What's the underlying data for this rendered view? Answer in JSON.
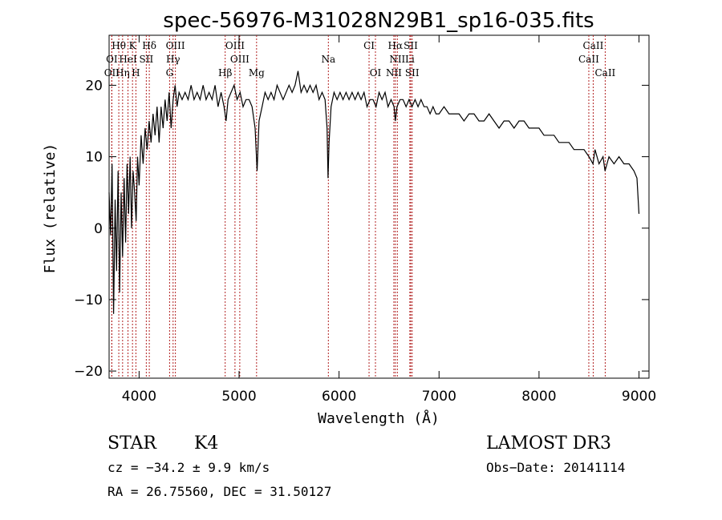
{
  "chart_data": {
    "type": "line",
    "title": "spec-56976-M31028N29B1_sp16-035.fits",
    "xlabel": "Wavelength (Å)",
    "ylabel": "Flux (relative)",
    "xlim": [
      3700,
      9100
    ],
    "ylim": [
      -21,
      27
    ],
    "xticks": [
      4000,
      5000,
      6000,
      7000,
      8000,
      9000
    ],
    "yticks": [
      -20,
      -10,
      0,
      10,
      20
    ],
    "series": [
      {
        "name": "flux",
        "points": [
          [
            3700,
            5
          ],
          [
            3715,
            -1
          ],
          [
            3730,
            9
          ],
          [
            3745,
            -12
          ],
          [
            3760,
            4
          ],
          [
            3775,
            -6
          ],
          [
            3790,
            8
          ],
          [
            3805,
            -9
          ],
          [
            3820,
            5
          ],
          [
            3835,
            -4
          ],
          [
            3850,
            7
          ],
          [
            3865,
            -2
          ],
          [
            3880,
            9
          ],
          [
            3895,
            2
          ],
          [
            3910,
            10
          ],
          [
            3925,
            0
          ],
          [
            3940,
            8
          ],
          [
            3955,
            5
          ],
          [
            3970,
            1
          ],
          [
            3985,
            10
          ],
          [
            4000,
            6
          ],
          [
            4020,
            13
          ],
          [
            4040,
            9
          ],
          [
            4060,
            14
          ],
          [
            4080,
            11
          ],
          [
            4100,
            15
          ],
          [
            4120,
            12
          ],
          [
            4140,
            16
          ],
          [
            4160,
            13
          ],
          [
            4180,
            17
          ],
          [
            4200,
            12
          ],
          [
            4220,
            17
          ],
          [
            4240,
            14
          ],
          [
            4260,
            18
          ],
          [
            4280,
            15
          ],
          [
            4300,
            19
          ],
          [
            4320,
            14
          ],
          [
            4340,
            18
          ],
          [
            4360,
            20
          ],
          [
            4380,
            17
          ],
          [
            4400,
            19
          ],
          [
            4430,
            18
          ],
          [
            4460,
            19
          ],
          [
            4490,
            18
          ],
          [
            4520,
            20
          ],
          [
            4550,
            18
          ],
          [
            4580,
            19
          ],
          [
            4610,
            18
          ],
          [
            4640,
            20
          ],
          [
            4670,
            18
          ],
          [
            4700,
            19
          ],
          [
            4730,
            18
          ],
          [
            4760,
            20
          ],
          [
            4790,
            17
          ],
          [
            4820,
            19
          ],
          [
            4850,
            17
          ],
          [
            4870,
            15
          ],
          [
            4890,
            18
          ],
          [
            4920,
            19
          ],
          [
            4950,
            20
          ],
          [
            4980,
            18
          ],
          [
            5010,
            19
          ],
          [
            5040,
            17
          ],
          [
            5070,
            18
          ],
          [
            5100,
            18
          ],
          [
            5130,
            17
          ],
          [
            5160,
            14
          ],
          [
            5180,
            8
          ],
          [
            5200,
            15
          ],
          [
            5230,
            17
          ],
          [
            5260,
            19
          ],
          [
            5290,
            18
          ],
          [
            5320,
            19
          ],
          [
            5350,
            18
          ],
          [
            5380,
            20
          ],
          [
            5410,
            19
          ],
          [
            5440,
            18
          ],
          [
            5470,
            19
          ],
          [
            5500,
            20
          ],
          [
            5530,
            19
          ],
          [
            5560,
            20
          ],
          [
            5590,
            22
          ],
          [
            5620,
            19
          ],
          [
            5650,
            20
          ],
          [
            5680,
            19
          ],
          [
            5710,
            20
          ],
          [
            5740,
            19
          ],
          [
            5770,
            20
          ],
          [
            5800,
            18
          ],
          [
            5830,
            19
          ],
          [
            5860,
            18
          ],
          [
            5880,
            14
          ],
          [
            5890,
            7
          ],
          [
            5900,
            12
          ],
          [
            5920,
            17
          ],
          [
            5950,
            19
          ],
          [
            5980,
            18
          ],
          [
            6010,
            19
          ],
          [
            6040,
            18
          ],
          [
            6070,
            19
          ],
          [
            6100,
            18
          ],
          [
            6130,
            19
          ],
          [
            6160,
            18
          ],
          [
            6190,
            19
          ],
          [
            6220,
            18
          ],
          [
            6250,
            19
          ],
          [
            6280,
            17
          ],
          [
            6310,
            18
          ],
          [
            6340,
            18
          ],
          [
            6370,
            17
          ],
          [
            6400,
            19
          ],
          [
            6430,
            18
          ],
          [
            6460,
            19
          ],
          [
            6490,
            17
          ],
          [
            6520,
            18
          ],
          [
            6550,
            17
          ],
          [
            6563,
            15
          ],
          [
            6580,
            17
          ],
          [
            6610,
            18
          ],
          [
            6640,
            18
          ],
          [
            6670,
            17
          ],
          [
            6700,
            18
          ],
          [
            6730,
            17
          ],
          [
            6760,
            18
          ],
          [
            6790,
            17
          ],
          [
            6820,
            18
          ],
          [
            6850,
            17
          ],
          [
            6880,
            17
          ],
          [
            6910,
            16
          ],
          [
            6940,
            17
          ],
          [
            6970,
            16
          ],
          [
            7000,
            16
          ],
          [
            7050,
            17
          ],
          [
            7100,
            16
          ],
          [
            7150,
            16
          ],
          [
            7200,
            16
          ],
          [
            7250,
            15
          ],
          [
            7300,
            16
          ],
          [
            7350,
            16
          ],
          [
            7400,
            15
          ],
          [
            7450,
            15
          ],
          [
            7500,
            16
          ],
          [
            7550,
            15
          ],
          [
            7600,
            14
          ],
          [
            7650,
            15
          ],
          [
            7700,
            15
          ],
          [
            7750,
            14
          ],
          [
            7800,
            15
          ],
          [
            7850,
            15
          ],
          [
            7900,
            14
          ],
          [
            7950,
            14
          ],
          [
            8000,
            14
          ],
          [
            8050,
            13
          ],
          [
            8100,
            13
          ],
          [
            8150,
            13
          ],
          [
            8200,
            12
          ],
          [
            8250,
            12
          ],
          [
            8300,
            12
          ],
          [
            8350,
            11
          ],
          [
            8400,
            11
          ],
          [
            8450,
            11
          ],
          [
            8500,
            10
          ],
          [
            8540,
            9
          ],
          [
            8560,
            11
          ],
          [
            8600,
            9
          ],
          [
            8640,
            10
          ],
          [
            8660,
            8
          ],
          [
            8700,
            10
          ],
          [
            8750,
            9
          ],
          [
            8800,
            10
          ],
          [
            8850,
            9
          ],
          [
            8900,
            9
          ],
          [
            8950,
            8
          ],
          [
            8980,
            7
          ],
          [
            9000,
            2
          ]
        ]
      }
    ],
    "spectral_lines": [
      {
        "label": "Hθ",
        "wavelength": 3797,
        "row": 0
      },
      {
        "label": "K",
        "wavelength": 3934,
        "row": 0
      },
      {
        "label": "Hδ",
        "wavelength": 4102,
        "row": 0
      },
      {
        "label": "OIII",
        "wavelength": 4363,
        "row": 0
      },
      {
        "label": "OIII",
        "wavelength": 4959,
        "row": 0
      },
      {
        "label": "CI",
        "wavelength": 6300,
        "row": 0
      },
      {
        "label": "Hα",
        "wavelength": 6563,
        "row": 0
      },
      {
        "label": "SII",
        "wavelength": 6717,
        "row": 0
      },
      {
        "label": "CaII",
        "wavelength": 8542,
        "row": 0
      },
      {
        "label": "OI",
        "wavelength": 3727,
        "row": 1
      },
      {
        "label": "HeI",
        "wavelength": 3889,
        "row": 1
      },
      {
        "label": "SII",
        "wavelength": 4072,
        "row": 1
      },
      {
        "label": "Hγ",
        "wavelength": 4340,
        "row": 1
      },
      {
        "label": "OIII",
        "wavelength": 5007,
        "row": 1
      },
      {
        "label": "NII",
        "wavelength": 6583,
        "row": 1
      },
      {
        "label": "Li",
        "wavelength": 6708,
        "row": 1
      },
      {
        "label": "CaII",
        "wavelength": 8498,
        "row": 1
      },
      {
        "label": "OII",
        "wavelength": 3727,
        "row": 2
      },
      {
        "label": "Hη",
        "wavelength": 3835,
        "row": 2
      },
      {
        "label": "H",
        "wavelength": 3968,
        "row": 2
      },
      {
        "label": "G",
        "wavelength": 4305,
        "row": 2
      },
      {
        "label": "Hβ",
        "wavelength": 4861,
        "row": 2
      },
      {
        "label": "Mg",
        "wavelength": 5175,
        "row": 2
      },
      {
        "label": "Na",
        "wavelength": 5893,
        "row": 1
      },
      {
        "label": "OI",
        "wavelength": 6364,
        "row": 2
      },
      {
        "label": "NII",
        "wavelength": 6548,
        "row": 2
      },
      {
        "label": "SII",
        "wavelength": 6731,
        "row": 2
      },
      {
        "label": "CaII",
        "wavelength": 8662,
        "row": 2
      }
    ],
    "grid": false
  },
  "info": {
    "object_class": "STAR",
    "subclass": "K4",
    "survey": "LAMOST DR3",
    "cz": "cz = −34.2 ± 9.9 km/s",
    "obs_date": "Obs−Date: 20141114",
    "coords": "RA =  26.75560, DEC =  31.50127"
  },
  "colors": {
    "line": "#000000",
    "marker": "#b22222"
  }
}
